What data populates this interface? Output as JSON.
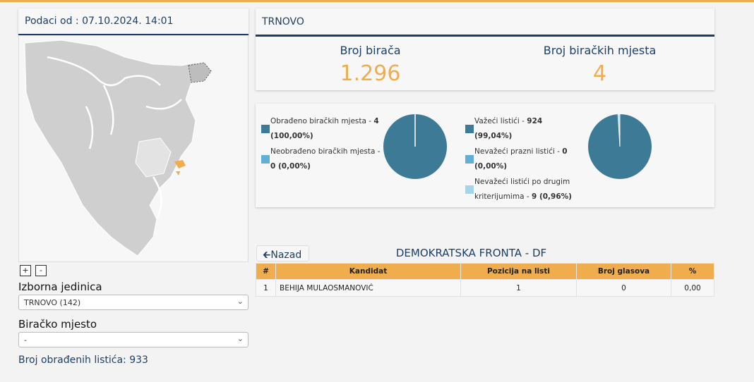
{
  "left": {
    "data_since": "Podaci od : 07.10.2024. 14:01",
    "zoom_in": "+",
    "zoom_out": "-",
    "unit_label": "Izborna jedinica",
    "unit_value": "TRNOVO (142)",
    "station_label": "Biračko mjesto",
    "station_value": "-",
    "processed_count": "Broj obrađenih listića: 933"
  },
  "main": {
    "title": "TRNOVO",
    "voters_label": "Broj birača",
    "voters_value": "1.296",
    "stations_label": "Broj biračkih mjesta",
    "stations_value": "4"
  },
  "charts": {
    "stations": {
      "legend": [
        {
          "text": "Obrađeno biračkih mjesta - ",
          "value": "4",
          "pct": "(100,00%)",
          "color": "#3d7a96"
        },
        {
          "text": "Neobrađeno biračkih mjesta - ",
          "value": "0 (0,00%)",
          "pct": "",
          "color": "#5fb0d4"
        }
      ],
      "slices": [
        100,
        0
      ]
    },
    "ballots": {
      "legend": [
        {
          "text": "Važeći listići - ",
          "value": "924",
          "pct": "(99,04%)",
          "color": "#3d7a96"
        },
        {
          "text": "Nevažeći prazni listići - ",
          "value": "0",
          "pct": "(0,00%)",
          "color": "#5fb0d4"
        },
        {
          "text": "Nevažeći listići po drugim",
          "text2": "kriterijumima - ",
          "value": "9 (0,96%)",
          "color": "#a6d5ea"
        }
      ],
      "slices": [
        99.04,
        0,
        0.96
      ]
    }
  },
  "list": {
    "back_label": "Nazad",
    "party": "DEMOKRATSKA FRONTA - DF",
    "headers": [
      "#",
      "Kandidat",
      "Pozicija na listi",
      "Broj glasova",
      "%"
    ],
    "rows": [
      [
        "1",
        "BEHIJA MULAOSMANOVIĆ",
        "1",
        "0",
        "0,00"
      ]
    ]
  },
  "colors": {
    "accent": "#f0ad4e",
    "navy": "#1d3f66",
    "pie": "#3d7a96"
  }
}
